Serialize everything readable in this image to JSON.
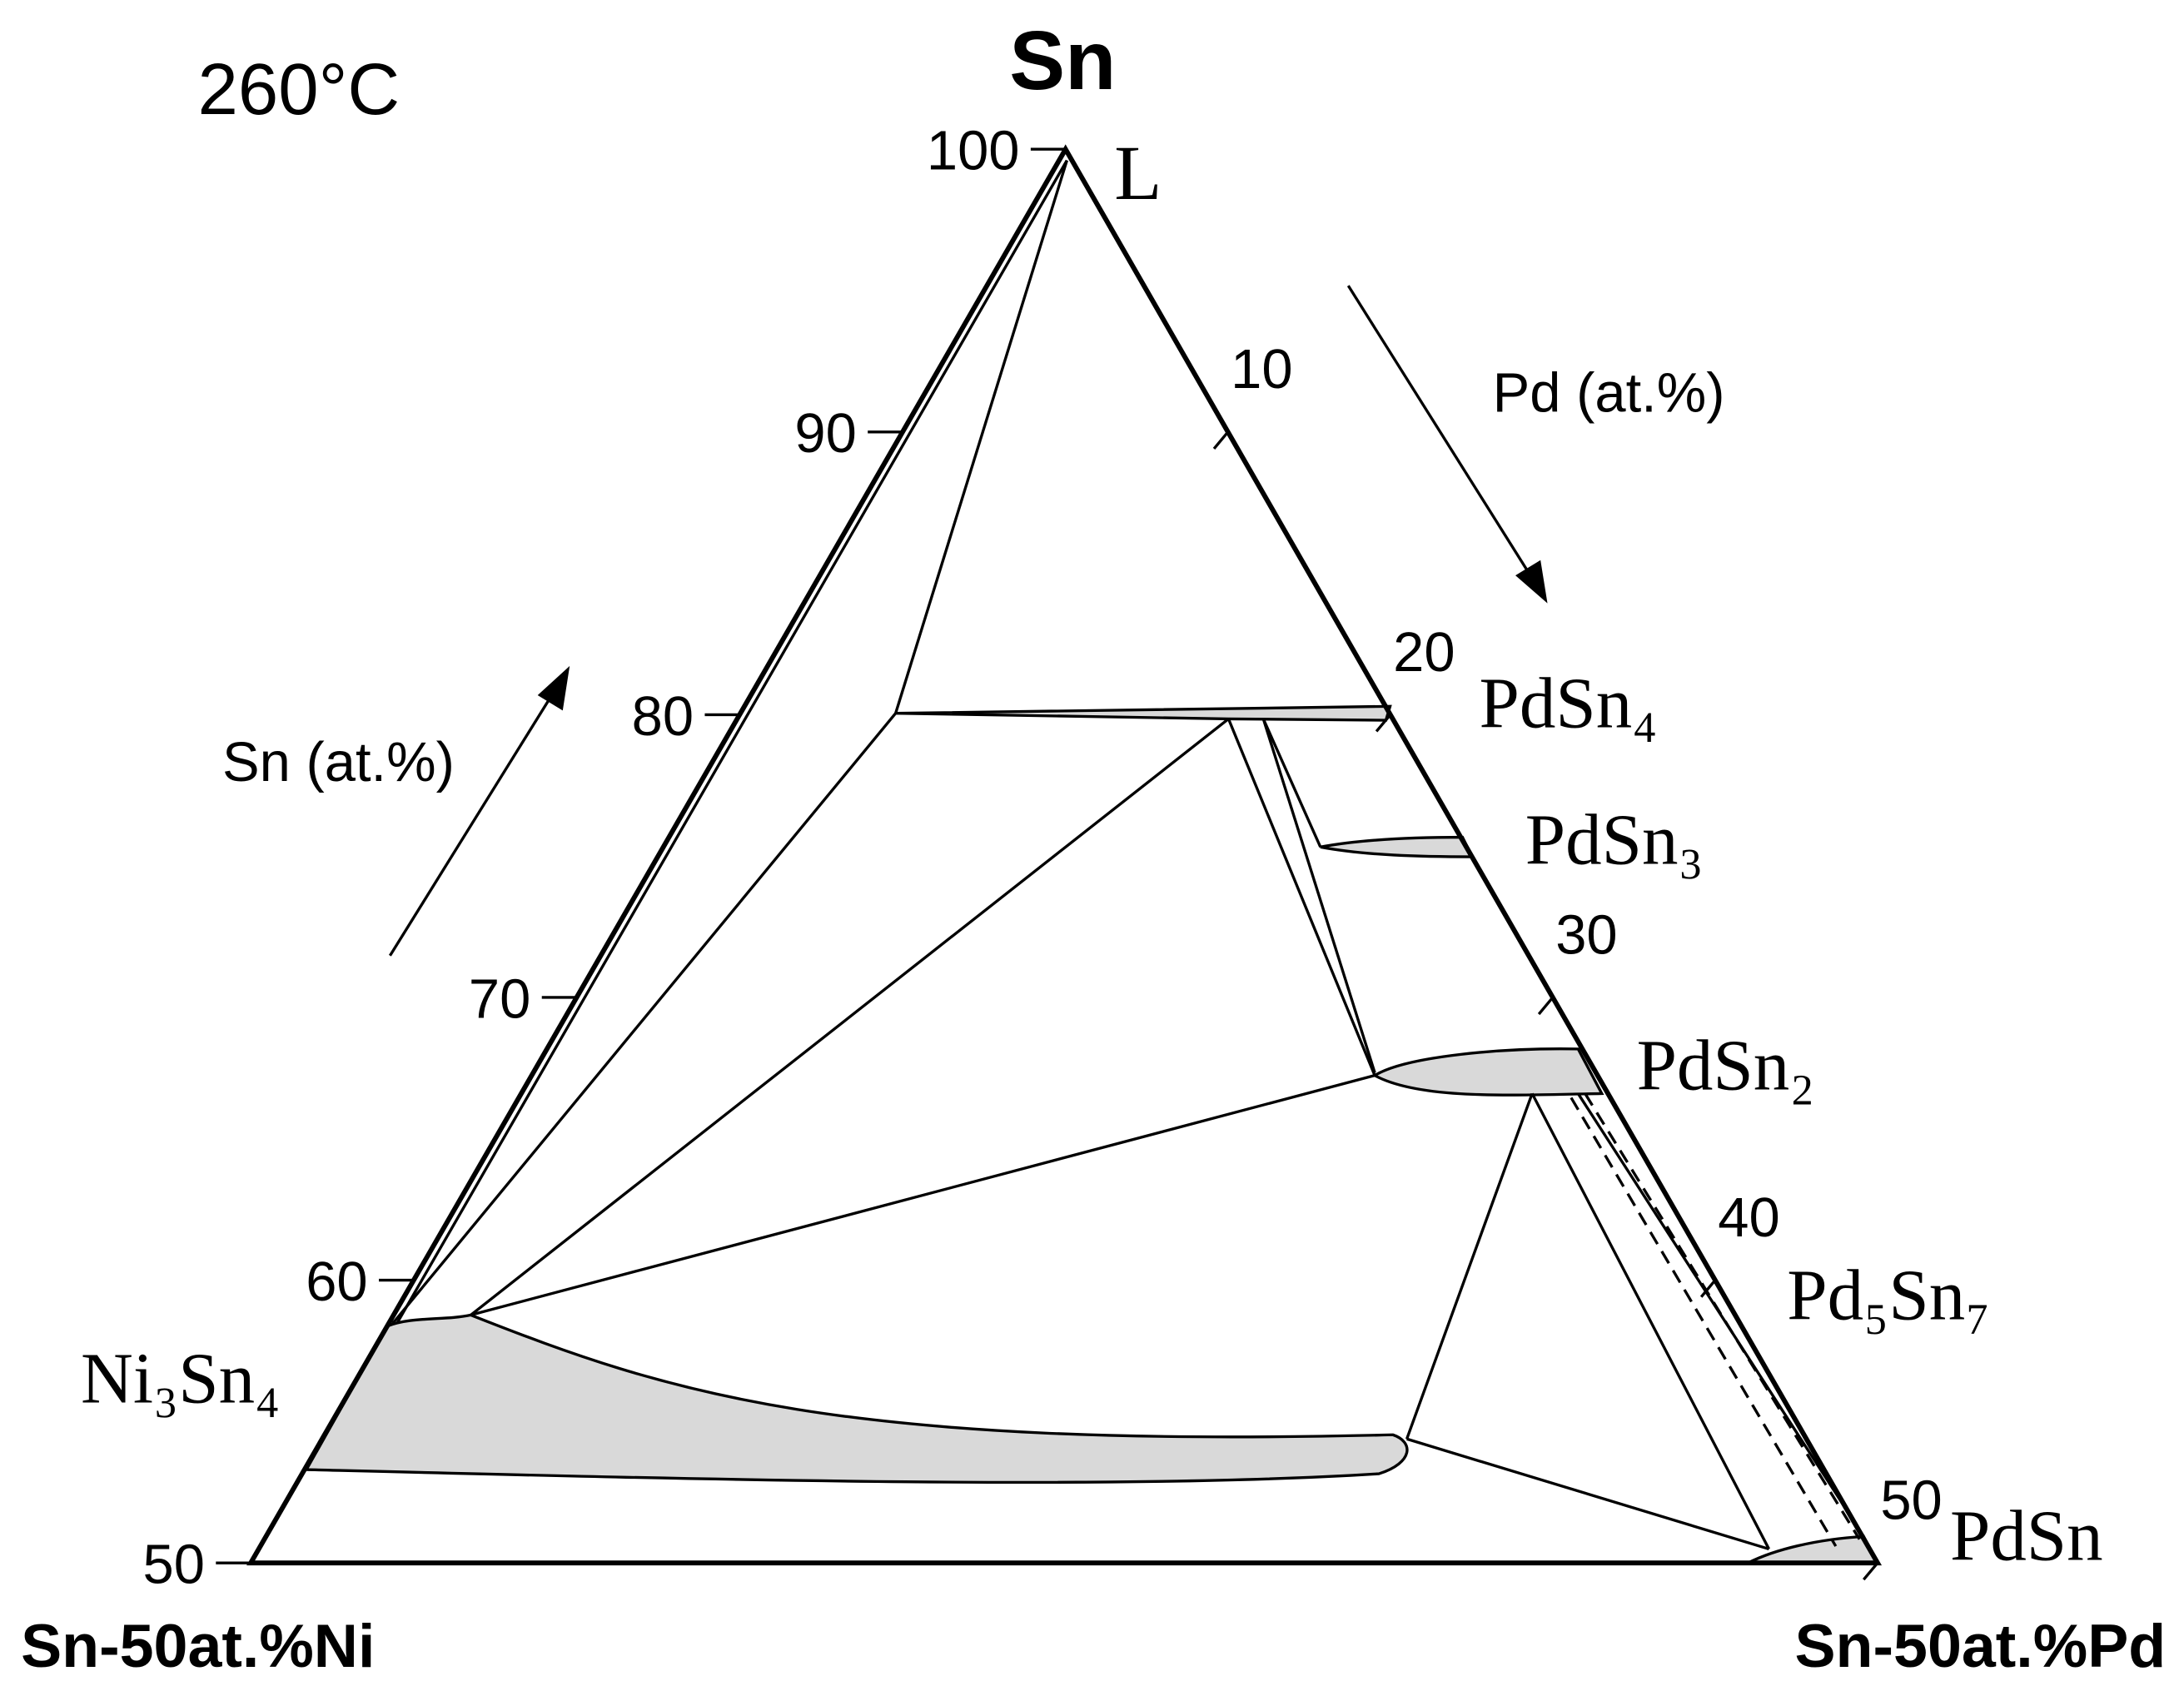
{
  "title": "260°C",
  "apex_label": "Sn",
  "left_corner_label": "Sn-50at.%Ni",
  "right_corner_label": "Sn-50at.%Pd",
  "left_axis": {
    "label": "Sn (at.%)",
    "ticks": [
      100,
      90,
      80,
      70,
      60,
      50
    ]
  },
  "right_axis": {
    "label": "Pd (at.%)",
    "ticks": [
      10,
      20,
      30,
      40,
      50
    ]
  },
  "phases": {
    "liquid": "L",
    "pdsn4": "PdSn₄",
    "pdsn3": "PdSn₃",
    "pdsn2": "PdSn₂",
    "pd5sn7": "Pd₅Sn₇",
    "pdsn": "PdSn",
    "ni3sn4": "Ni₃Sn₄"
  }
}
